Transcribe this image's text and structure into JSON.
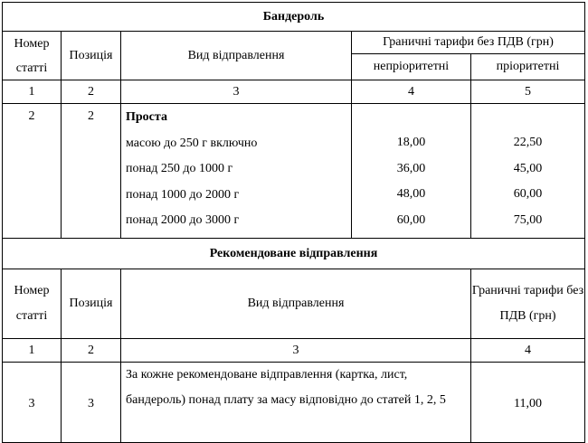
{
  "section1": {
    "title": "Бандероль",
    "headers": {
      "article_no": "Номер статті",
      "position": "Позиція",
      "item_type": "Вид відправлення",
      "tariffs": "Граничні тарифи без ПДВ (грн)",
      "non_priority": "непріоритетні",
      "priority": "пріоритетні"
    },
    "column_numbers": [
      "1",
      "2",
      "3",
      "4",
      "5"
    ],
    "rows": [
      {
        "article_no": "2",
        "position": "2",
        "group_label": "Проста",
        "items": [
          {
            "label": "масою до 250 г включно",
            "non_priority": "18,00",
            "priority": "22,50"
          },
          {
            "label": "понад 250 до 1000 г",
            "non_priority": "36,00",
            "priority": "45,00"
          },
          {
            "label": "понад 1000 до 2000 г",
            "non_priority": "48,00",
            "priority": "60,00"
          },
          {
            "label": "понад 2000 до 3000 г",
            "non_priority": "60,00",
            "priority": "75,00"
          }
        ]
      }
    ]
  },
  "section2": {
    "title": "Рекомендоване відправлення",
    "headers": {
      "article_no": "Номер статті",
      "position": "Позиція",
      "item_type": "Вид відправлення",
      "tariffs": "Граничні тарифи без ПДВ (грн)"
    },
    "column_numbers": [
      "1",
      "2",
      "3",
      "4"
    ],
    "rows": [
      {
        "article_no": "3",
        "position": "3",
        "description": "За кожне рекомендоване відправлення (картка, лист, бандероль) понад плату за масу відповідно до статей 1, 2, 5",
        "tariff": "11,00"
      }
    ]
  }
}
